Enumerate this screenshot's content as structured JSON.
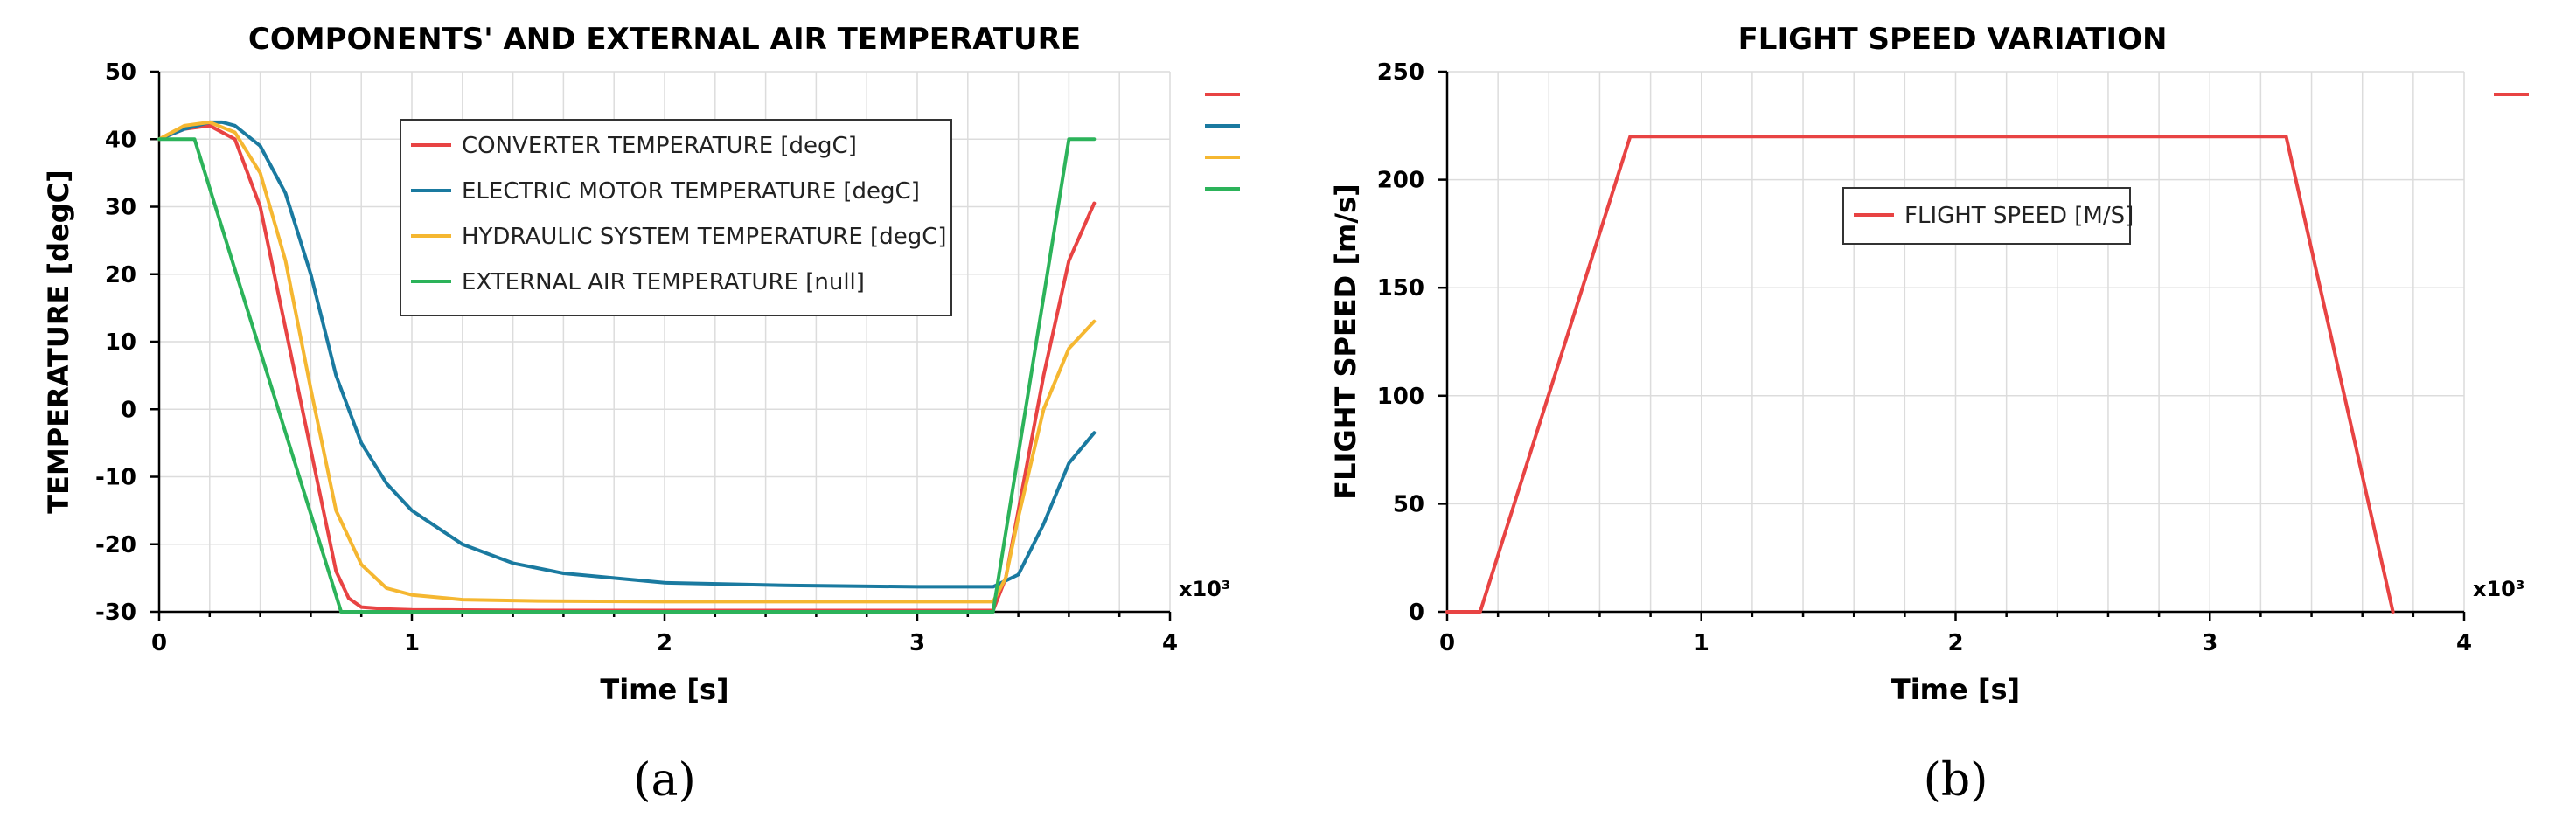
{
  "chart_data": [
    {
      "id": "a",
      "type": "line",
      "title": "COMPONENTS' AND EXTERNAL AIR TEMPERATURE",
      "xlabel": "Time [s]",
      "ylabel": "TEMPERATURE [degC]",
      "xlim": [
        0,
        4
      ],
      "ylim": [
        -30,
        50
      ],
      "xticks": [
        "0",
        "1",
        "2",
        "3",
        "4"
      ],
      "yticks": [
        "-30",
        "-20",
        "-10",
        "0",
        "10",
        "20",
        "30",
        "40",
        "50"
      ],
      "x_multiplier": "x10³",
      "caption": "(a)",
      "grid": true,
      "legend_position": "top-center",
      "series": [
        {
          "name": "CONVERTER TEMPERATURE [degC]",
          "color": "#e84343",
          "x": [
            0,
            0.1,
            0.2,
            0.3,
            0.4,
            0.5,
            0.6,
            0.7,
            0.75,
            0.8,
            0.9,
            1.0,
            1.5,
            2.0,
            2.5,
            3.0,
            3.3,
            3.35,
            3.4,
            3.5,
            3.6,
            3.7
          ],
          "values": [
            40,
            41.5,
            42,
            40,
            30,
            12,
            -6,
            -24,
            -28,
            -29.3,
            -29.6,
            -29.7,
            -29.8,
            -29.8,
            -29.8,
            -29.8,
            -29.8,
            -25,
            -15,
            5,
            22,
            30.5
          ]
        },
        {
          "name": "ELECTRIC MOTOR TEMPERATURE [degC]",
          "color": "#1a7aa0",
          "x": [
            0,
            0.1,
            0.2,
            0.25,
            0.3,
            0.4,
            0.5,
            0.6,
            0.7,
            0.8,
            0.9,
            1.0,
            1.2,
            1.4,
            1.6,
            2.0,
            2.5,
            3.0,
            3.3,
            3.4,
            3.5,
            3.6,
            3.7
          ],
          "values": [
            40,
            41.5,
            42.5,
            42.5,
            42,
            39,
            32,
            20,
            5,
            -5,
            -11,
            -15,
            -20,
            -22.8,
            -24.3,
            -25.7,
            -26.1,
            -26.3,
            -26.3,
            -24.5,
            -17,
            -8,
            -3.5
          ]
        },
        {
          "name": "HYDRAULIC SYSTEM TEMPERATURE [degC]",
          "color": "#f5b731",
          "x": [
            0,
            0.1,
            0.2,
            0.3,
            0.4,
            0.5,
            0.6,
            0.7,
            0.8,
            0.9,
            1.0,
            1.2,
            1.5,
            2.0,
            2.5,
            3.0,
            3.3,
            3.35,
            3.4,
            3.5,
            3.6,
            3.7
          ],
          "values": [
            40,
            42,
            42.5,
            41,
            35,
            22,
            3,
            -15,
            -23,
            -26.5,
            -27.5,
            -28.2,
            -28.4,
            -28.5,
            -28.5,
            -28.5,
            -28.5,
            -25,
            -16,
            0,
            9,
            13
          ]
        },
        {
          "name": "EXTERNAL AIR TEMPERATURE [null]",
          "color": "#2cb35a",
          "x": [
            0,
            0.14,
            0.72,
            1.0,
            2.0,
            3.0,
            3.3,
            3.6,
            3.7
          ],
          "values": [
            40,
            40,
            -30,
            -30,
            -30,
            -30,
            -30,
            40,
            40
          ]
        }
      ]
    },
    {
      "id": "b",
      "type": "line",
      "title": "FLIGHT SPEED VARIATION",
      "xlabel": "Time [s]",
      "ylabel": "FLIGHT SPEED [m/s]",
      "xlim": [
        0,
        4
      ],
      "ylim": [
        0,
        250
      ],
      "xticks": [
        "0",
        "1",
        "2",
        "3",
        "4"
      ],
      "yticks": [
        "0",
        "50",
        "100",
        "150",
        "200",
        "250"
      ],
      "x_multiplier": "x10³",
      "caption": "(b)",
      "grid": true,
      "legend_position": "center",
      "series": [
        {
          "name": "FLIGHT SPEED [M/S]",
          "color": "#e84343",
          "x": [
            0,
            0.13,
            0.72,
            3.3,
            3.72
          ],
          "values": [
            0,
            0,
            220,
            220,
            0
          ]
        }
      ]
    }
  ]
}
